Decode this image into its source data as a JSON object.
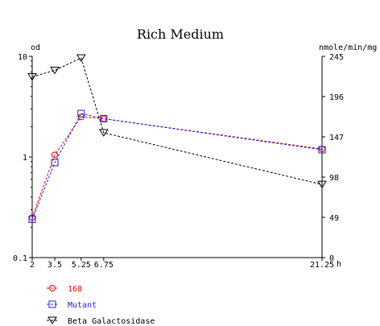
{
  "chart_data": {
    "type": "line",
    "title": "Rich Medium",
    "x": [
      2,
      3.5,
      5.25,
      6.75,
      21.25
    ],
    "x_tick_labels": [
      "2",
      "3.5",
      "5.25",
      "6.75",
      "21.25"
    ],
    "x_unit": "h",
    "xlim": [
      2,
      21.25
    ],
    "y_left": {
      "label": "od",
      "scale": "log",
      "ylim": [
        0.1,
        10
      ],
      "ticks": [
        0.1,
        1,
        10
      ],
      "tick_labels": [
        "0.1",
        "1",
        "10"
      ]
    },
    "y_right": {
      "label": "nmole/min/mg",
      "scale": "linear",
      "ylim": [
        0,
        245
      ],
      "ticks": [
        0,
        49,
        98,
        147,
        196,
        245
      ],
      "tick_labels": [
        "0",
        "49",
        "98",
        "147",
        "196",
        "245"
      ]
    },
    "series": [
      {
        "name": "168",
        "axis": "left",
        "marker": "circle",
        "color": "#e00000",
        "values": [
          0.25,
          1.05,
          2.5,
          2.4,
          1.2
        ]
      },
      {
        "name": "Mutant",
        "axis": "left",
        "marker": "square",
        "color": "#2020e0",
        "values": [
          0.24,
          0.88,
          2.7,
          2.4,
          1.18
        ]
      },
      {
        "name": "Beta Galactosidase",
        "axis": "right",
        "marker": "triangle-down",
        "color": "#000000",
        "values": [
          220,
          228,
          243,
          152,
          89
        ]
      }
    ],
    "grid": false,
    "legend_position": "bottom-left"
  }
}
